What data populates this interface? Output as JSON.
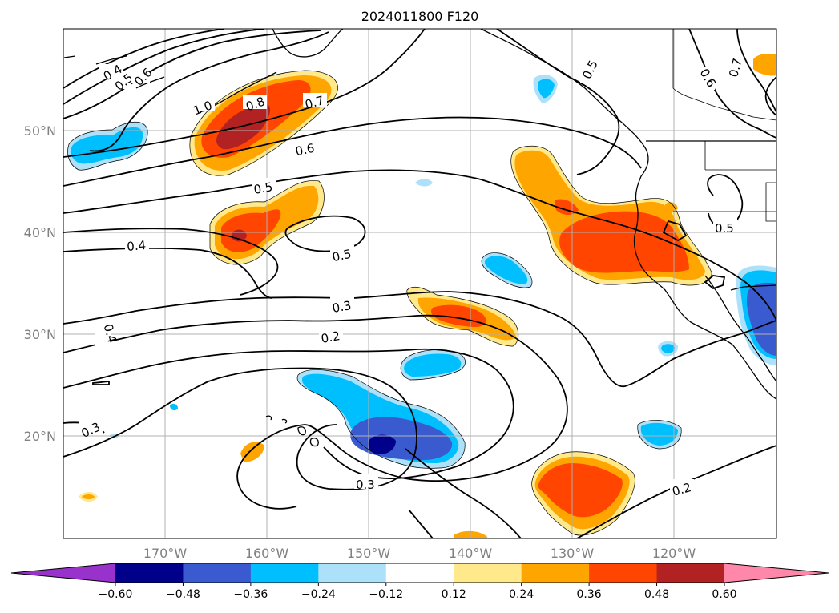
{
  "title": "2024011800 F120",
  "lat_labels": [
    "50°N",
    "40°N",
    "30°N",
    "20°N"
  ],
  "lon_labels": [
    "170°W",
    "160°W",
    "150°W",
    "140°W",
    "130°W",
    "120°W"
  ],
  "colorbar": {
    "ticks": [
      "−0.60",
      "−0.48",
      "−0.36",
      "−0.24",
      "−0.12",
      "0.12",
      "0.24",
      "0.36",
      "0.48",
      "0.60"
    ],
    "colors": [
      "#9932CC",
      "#00008B",
      "#3A5BD0",
      "#00BFFF",
      "#ADE1FA",
      "#FFFFFF",
      "#FFE98A",
      "#FFA500",
      "#FF4500",
      "#B22222",
      "#FF88AA"
    ]
  },
  "contour_labels": [
    "0.4",
    "0.5",
    "0.6",
    "1.0",
    "0.8",
    "0.7",
    "0.6",
    "0.5",
    "0.4",
    "0.5",
    "0.3",
    "0.2",
    "0.4",
    "0.3",
    "0.3",
    "0.2",
    "0.5",
    "0.6",
    "0.7",
    "0.5"
  ]
}
